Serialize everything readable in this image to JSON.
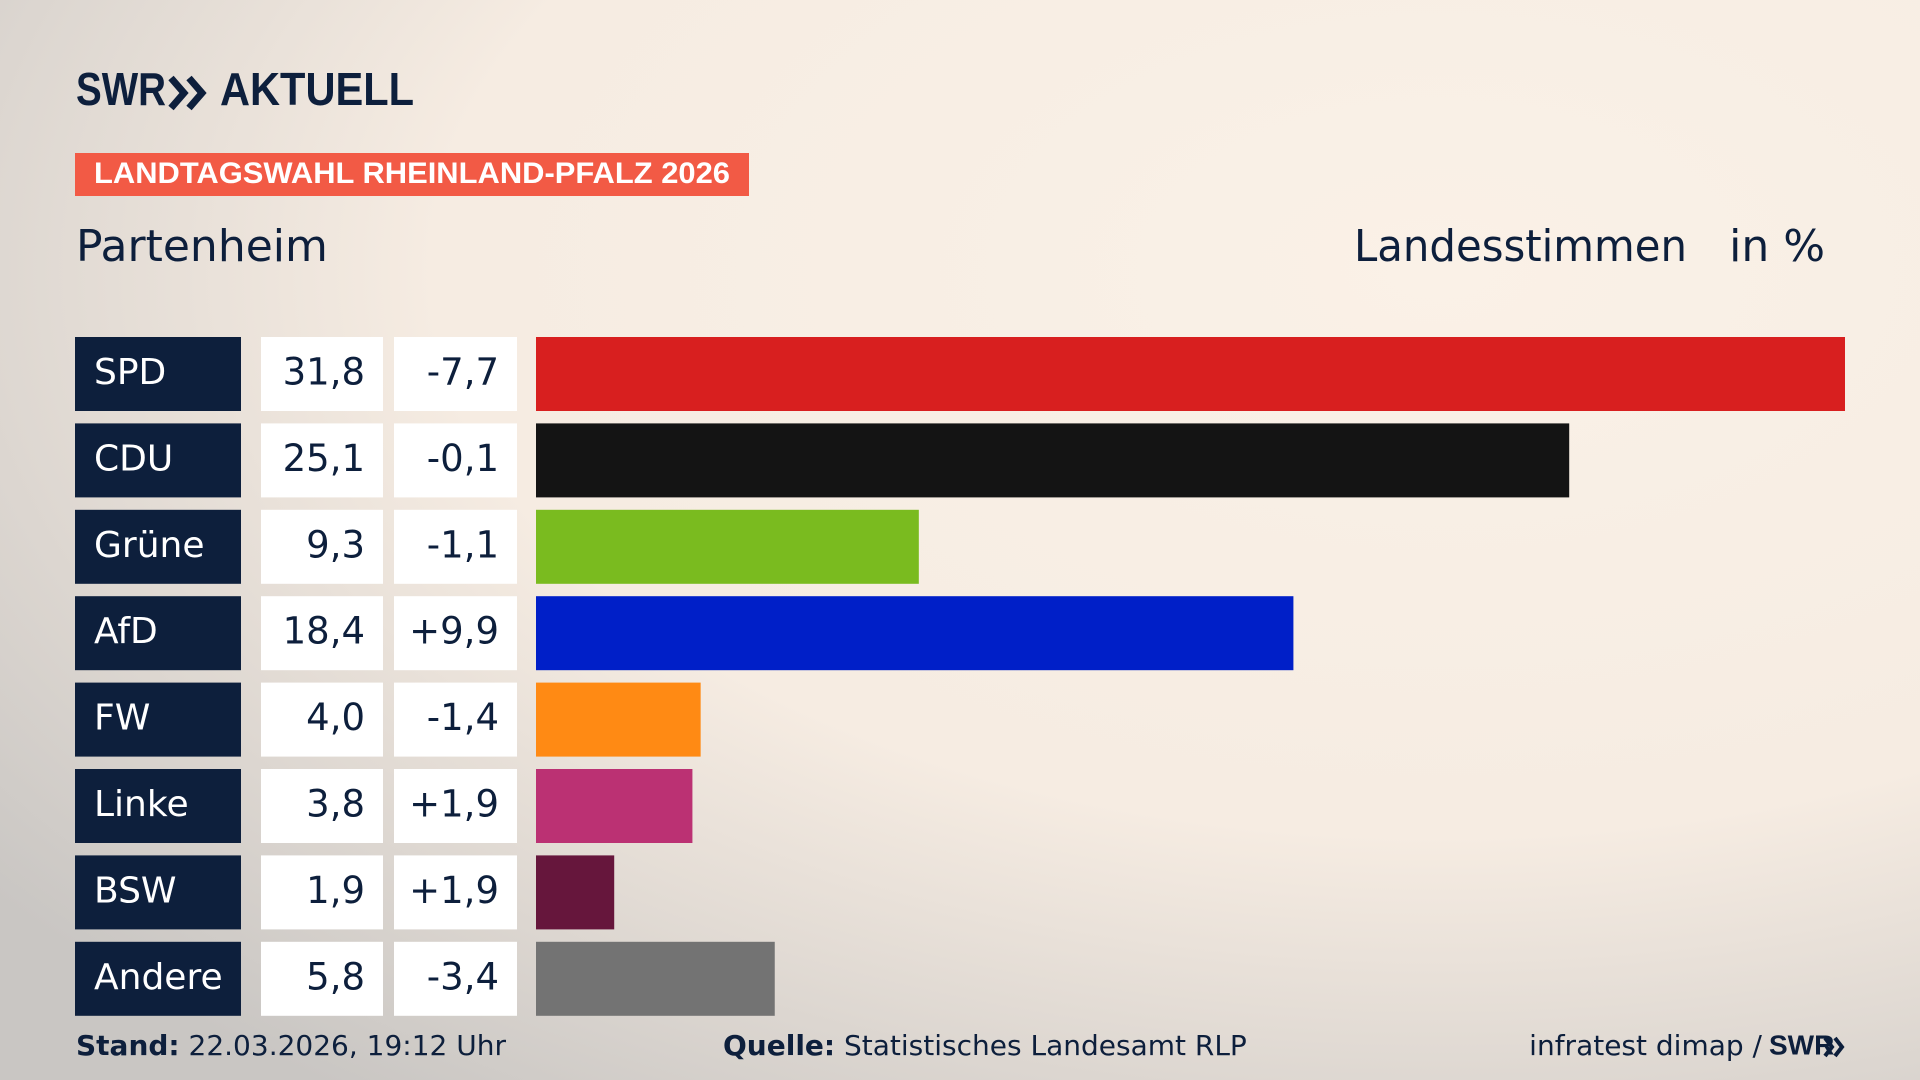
{
  "chart_data": {
    "type": "bar",
    "orientation": "horizontal",
    "brand": "SWR",
    "brand_suffix": "AKTUELL",
    "banner": "LANDTAGSWAHL RHEINLAND-PFALZ 2026",
    "title": "Partenheim",
    "subtitle": "Landesstimmen",
    "unit_label": "in %",
    "categories": [
      "SPD",
      "CDU",
      "Grüne",
      "AfD",
      "FW",
      "Linke",
      "BSW",
      "Andere"
    ],
    "values": [
      31.8,
      25.1,
      9.3,
      18.4,
      4.0,
      3.8,
      1.9,
      5.8
    ],
    "value_labels": [
      "31,8",
      "25,1",
      "9,3",
      "18,4",
      "4,0",
      "3,8",
      "1,9",
      "5,8"
    ],
    "changes": [
      -7.7,
      -0.1,
      -1.1,
      9.9,
      -1.4,
      1.9,
      1.9,
      -3.4
    ],
    "change_labels": [
      "-7,7",
      "-0,1",
      "-1,1",
      "+9,9",
      "-1,4",
      "+1,9",
      "+1,9",
      "-3,4"
    ],
    "colors": [
      "#d81f1f",
      "#141414",
      "#7abb1f",
      "#001fc8",
      "#ff8a14",
      "#bb3173",
      "#66163c",
      "#737373"
    ],
    "footer": {
      "stand_label": "Stand:",
      "stand": "22.03.2026, 19:12 Uhr",
      "source_label": "Quelle:",
      "source": "Statistisches Landesamt RLP",
      "credit": "infratest dimap /",
      "credit_brand": "SWR"
    }
  }
}
